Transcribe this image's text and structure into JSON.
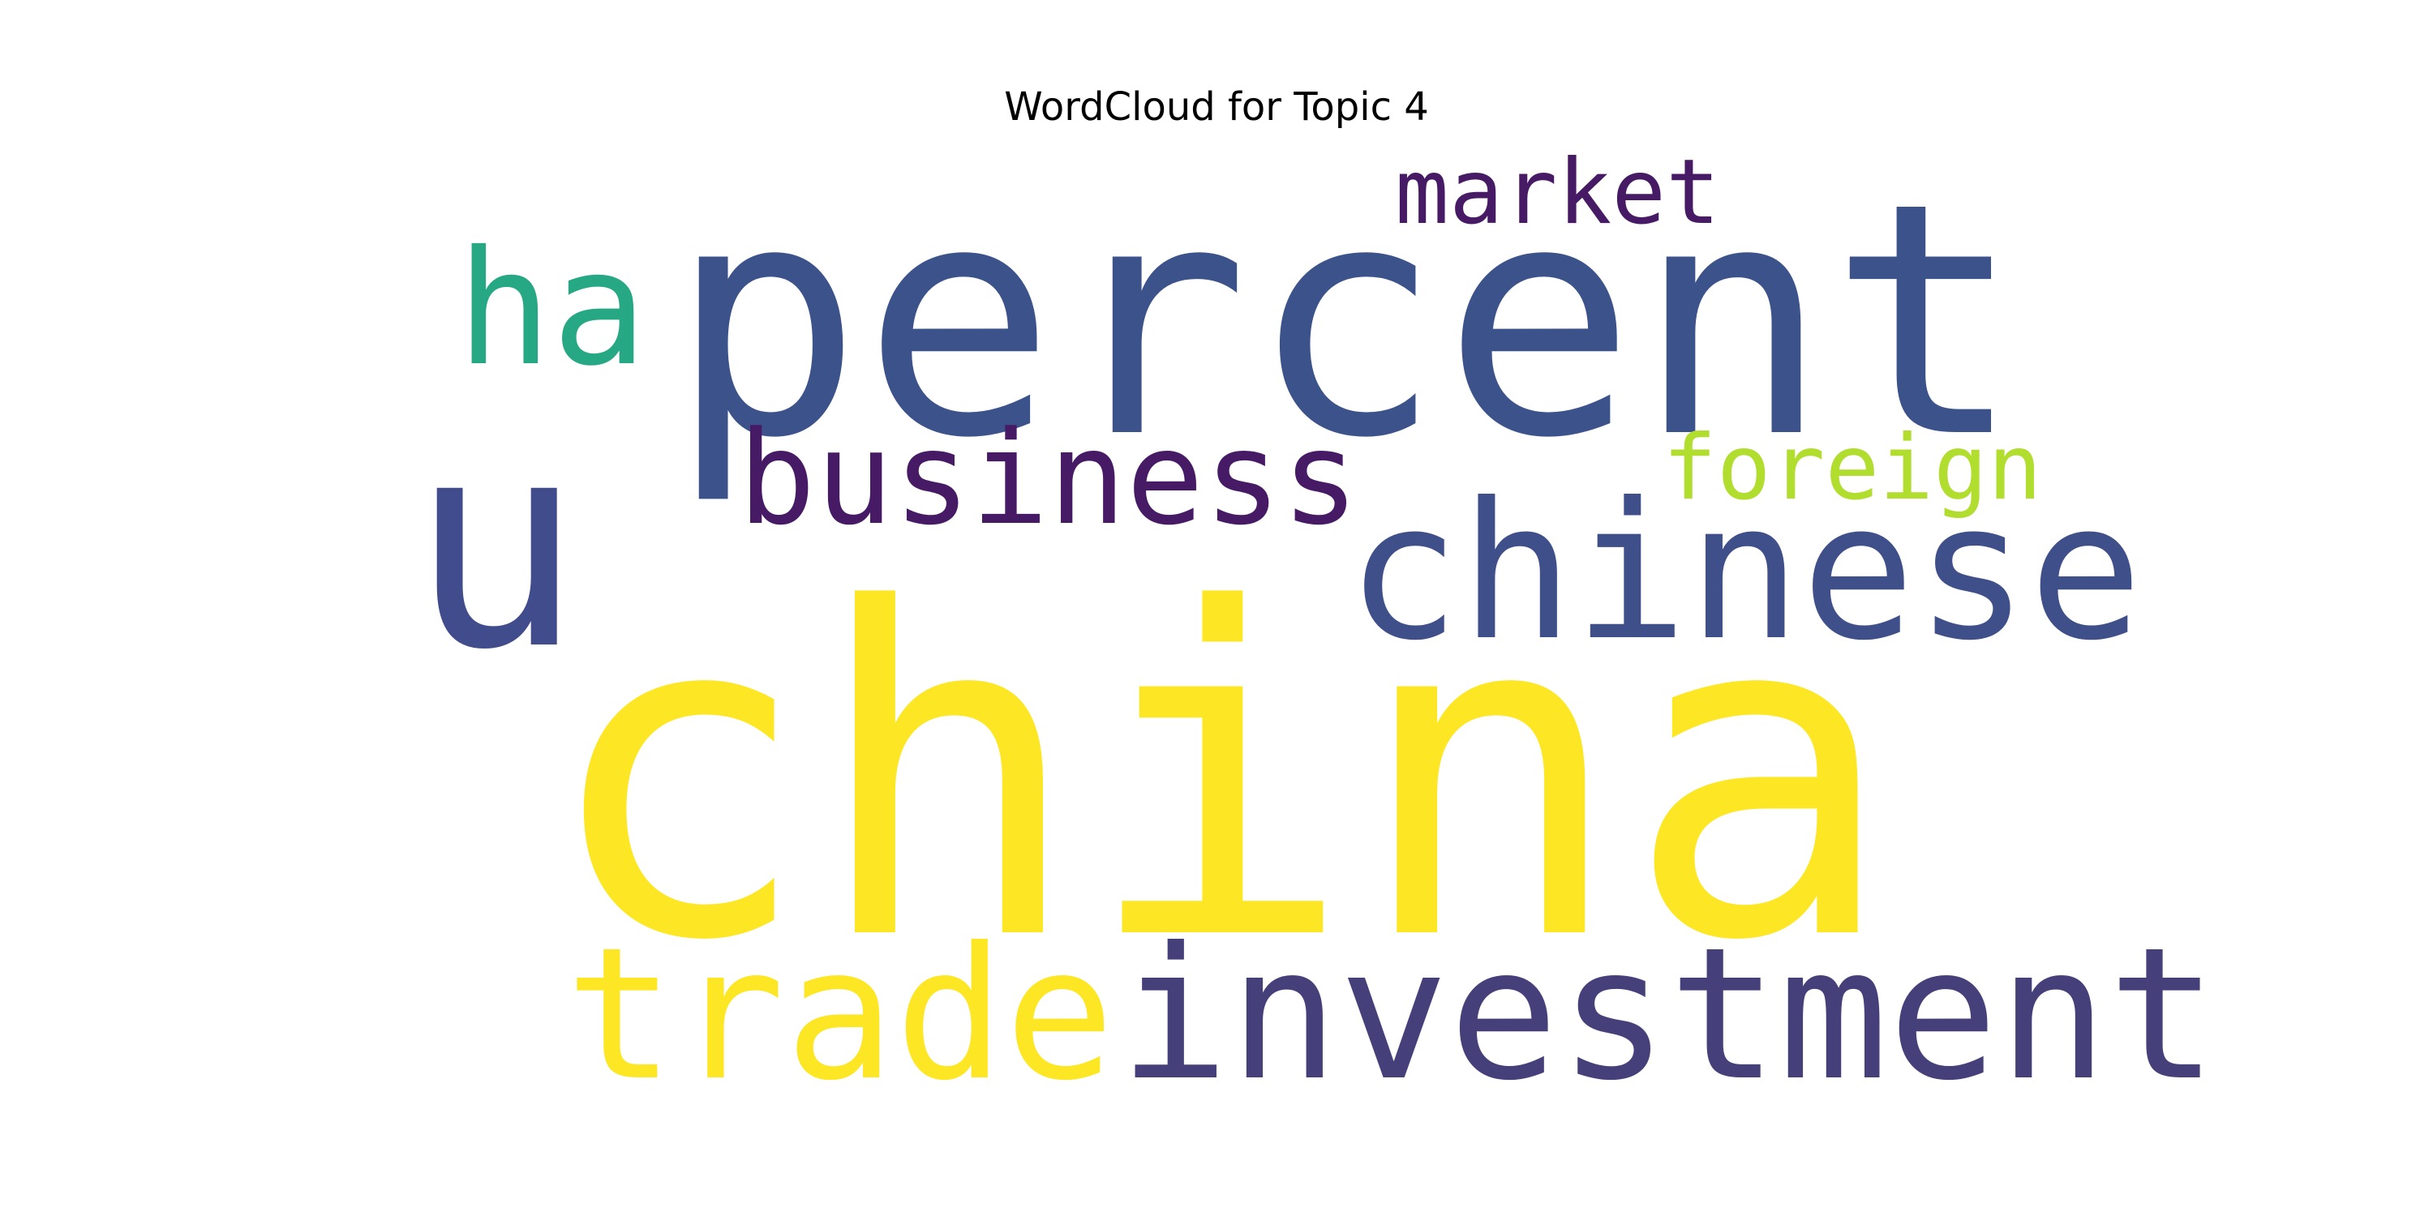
{
  "title": "WordCloud for Topic 4",
  "words": [
    {
      "text": "china",
      "color": "#fde725",
      "rank": 1
    },
    {
      "text": "percent",
      "color": "#3b528b",
      "rank": 2
    },
    {
      "text": "u",
      "color": "#404c8c",
      "rank": 3
    },
    {
      "text": "investment",
      "color": "#46407a",
      "rank": 4
    },
    {
      "text": "chinese",
      "color": "#3e4f8a",
      "rank": 5
    },
    {
      "text": "trade",
      "color": "#fde725",
      "rank": 6
    },
    {
      "text": "business",
      "color": "#471a66",
      "rank": 7
    },
    {
      "text": "ha",
      "color": "#26a884",
      "rank": 8
    },
    {
      "text": "market",
      "color": "#471a66",
      "rank": 9
    },
    {
      "text": "foreign",
      "color": "#b1dd2e",
      "rank": 10
    }
  ]
}
